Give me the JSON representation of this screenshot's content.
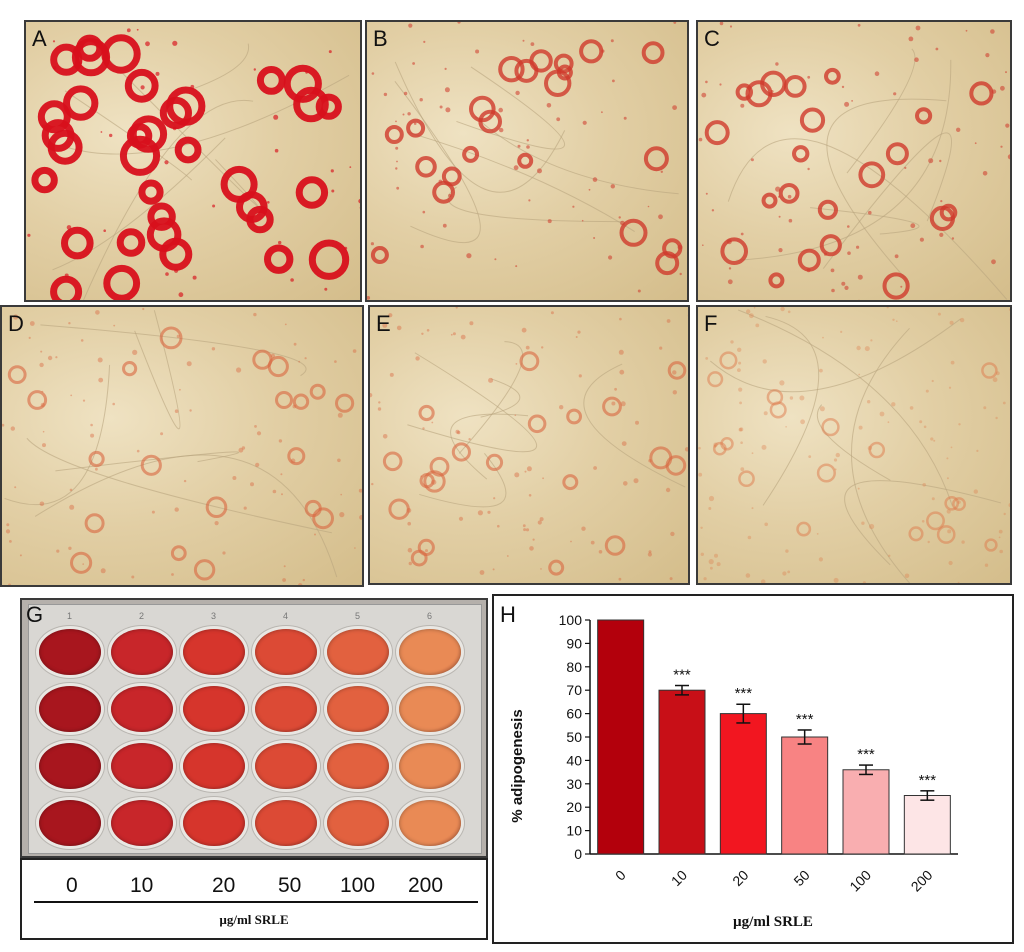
{
  "panels": [
    {
      "label": "A",
      "stain": "heavy"
    },
    {
      "label": "B",
      "stain": "medium"
    },
    {
      "label": "C",
      "stain": "medium"
    },
    {
      "label": "D",
      "stain": "light"
    },
    {
      "label": "E",
      "stain": "light"
    },
    {
      "label": "F",
      "stain": "faint"
    }
  ],
  "plate": {
    "label": "G",
    "column_numbers": [
      "1",
      "2",
      "3",
      "4",
      "5",
      "6"
    ],
    "column_colors": [
      "#a8161e",
      "#c8262a",
      "#d6352c",
      "#dc4a35",
      "#e2613f",
      "#e98a55"
    ],
    "doses": [
      "0",
      "10",
      "20",
      "50",
      "100",
      "200"
    ],
    "unit": "µg/ml SRLE"
  },
  "chart_data": {
    "type": "bar",
    "panel_label": "H",
    "categories": [
      "0",
      "10",
      "20",
      "50",
      "100",
      "200"
    ],
    "values": [
      100,
      70,
      60,
      50,
      36,
      25
    ],
    "errors": [
      0,
      2,
      4,
      3,
      2,
      2
    ],
    "significance": [
      "",
      "***",
      "***",
      "***",
      "***",
      "***"
    ],
    "bar_colors": [
      "#b3000c",
      "#c80f17",
      "#f21620",
      "#f88383",
      "#f9aeb0",
      "#fde5e6"
    ],
    "xlabel": "µg/ml SRLE",
    "ylabel": "% adipogenesis",
    "ylim": [
      0,
      100
    ],
    "yticks": [
      0,
      10,
      20,
      30,
      40,
      50,
      60,
      70,
      80,
      90,
      100
    ],
    "grid": false
  }
}
